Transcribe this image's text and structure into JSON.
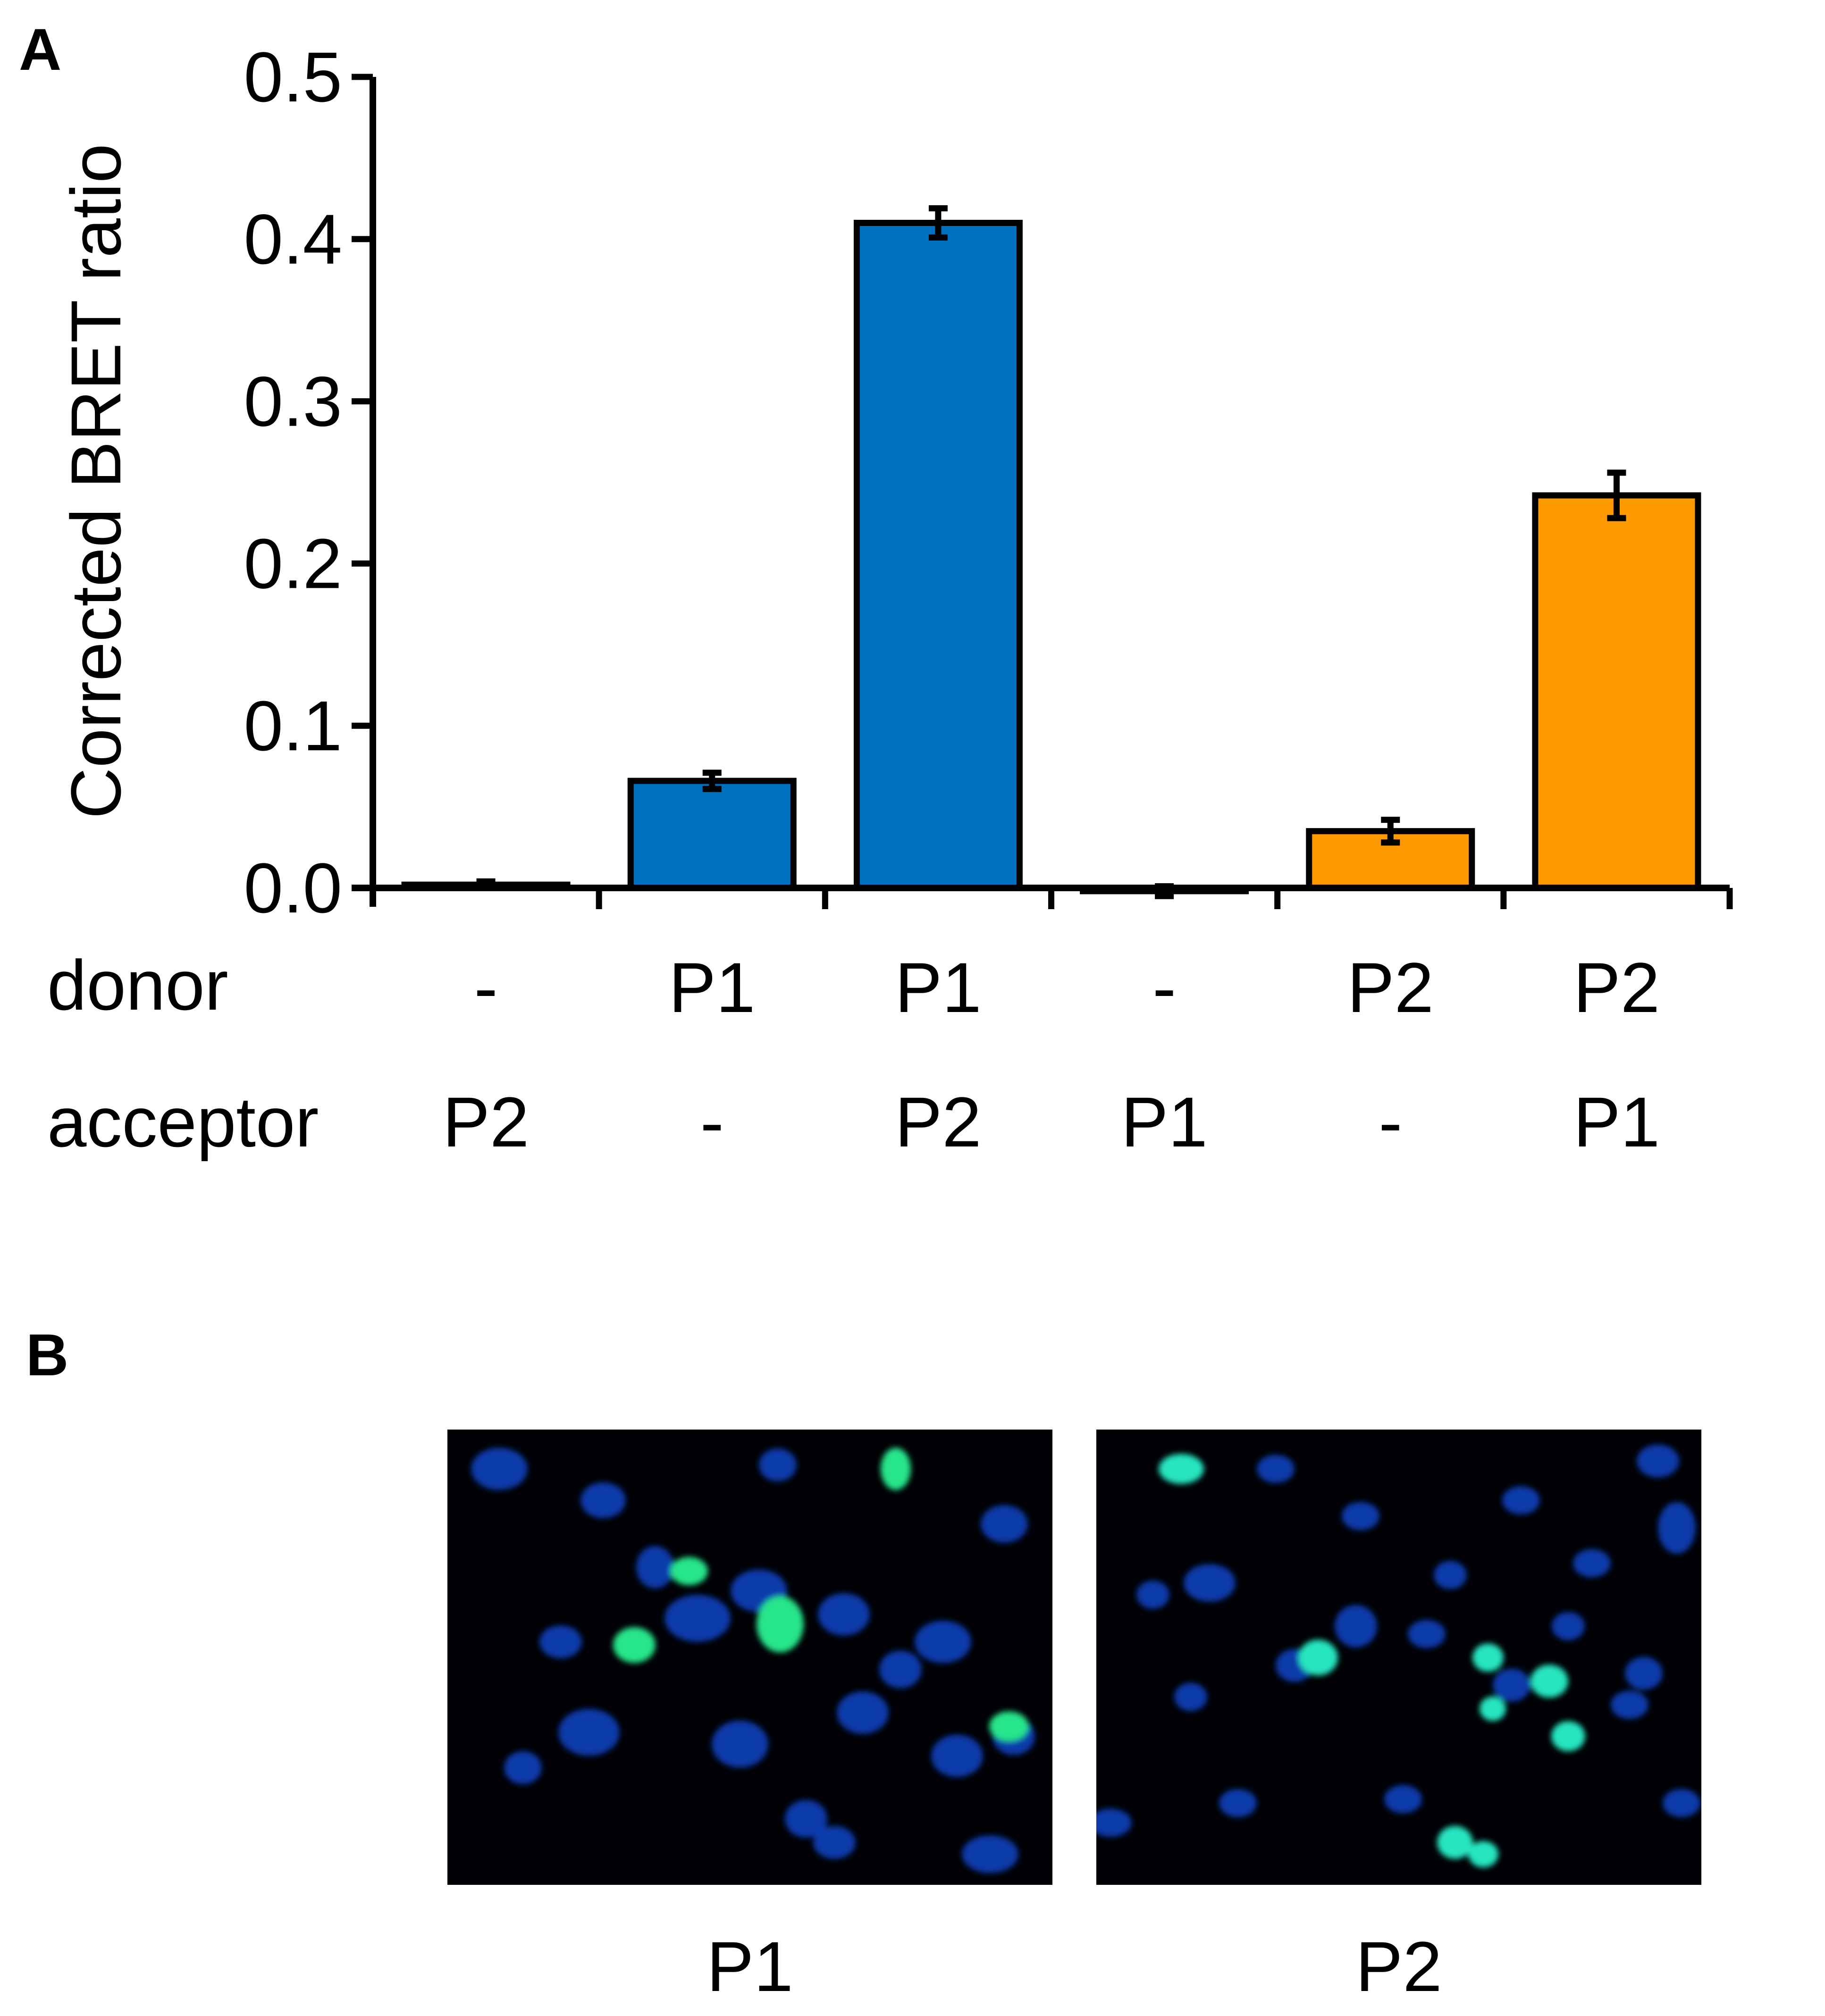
{
  "panels": {
    "a_label": "A",
    "b_label": "B"
  },
  "chart_data": {
    "type": "bar",
    "title": "",
    "xlabel": "",
    "ylabel": "Corrected BRET ratio",
    "ylim": [
      0,
      0.5
    ],
    "yticks": [
      "0.0",
      "0.1",
      "0.2",
      "0.3",
      "0.4",
      "0.5"
    ],
    "row_labels": {
      "donor": "donor",
      "acceptor": "acceptor"
    },
    "categories": [
      {
        "donor": "-",
        "acceptor": "P2"
      },
      {
        "donor": "P1",
        "acceptor": "-"
      },
      {
        "donor": "P1",
        "acceptor": "P2"
      },
      {
        "donor": "-",
        "acceptor": "P1"
      },
      {
        "donor": "P2",
        "acceptor": "-"
      },
      {
        "donor": "P2",
        "acceptor": "P1"
      }
    ],
    "values": [
      0.002,
      0.066,
      0.41,
      -0.002,
      0.035,
      0.242
    ],
    "errors": [
      0.002,
      0.005,
      0.009,
      0.003,
      0.007,
      0.014
    ],
    "bar_colors": [
      "#0070C0",
      "#0070C0",
      "#0070C0",
      "#FF9900",
      "#FF9900",
      "#FF9900"
    ],
    "grid": false,
    "legend": "none"
  },
  "micrographs": [
    {
      "label": "P1",
      "background": "#000005",
      "nucleus_color": "#0a46c8",
      "marker_color": "#25e58a"
    },
    {
      "label": "P2",
      "background": "#000005",
      "nucleus_color": "#0a46c8",
      "marker_color": "#25e5c0"
    }
  ]
}
